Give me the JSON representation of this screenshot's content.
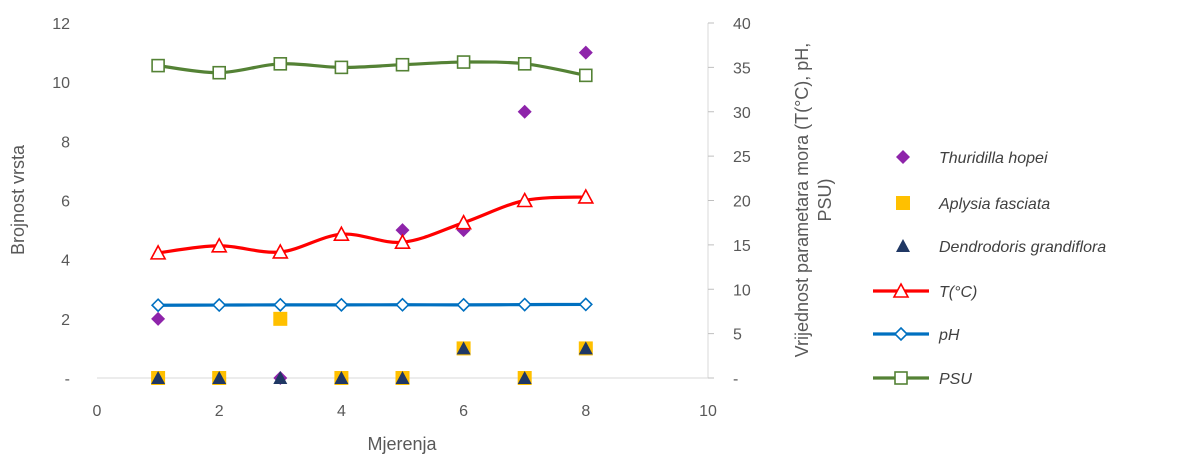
{
  "chart_data": {
    "type": "scatter",
    "xlabel": "Mjerenja",
    "ylabel": "Brojnost vrsta",
    "y2label_line1": "Vrijednost parametara mora (T(°C), pH,",
    "y2label_line2": "PSU)",
    "xlim": [
      0,
      10
    ],
    "ylim": [
      0,
      12
    ],
    "y2lim": [
      0,
      40
    ],
    "x_ticks": [
      "0",
      "2",
      "4",
      "6",
      "8",
      "10"
    ],
    "y_ticks": [
      "-",
      "2",
      "4",
      "6",
      "8",
      "10",
      "12"
    ],
    "y2_ticks": [
      "-",
      "5",
      "10",
      "15",
      "20",
      "25",
      "30",
      "35",
      "40"
    ],
    "legend_position": "right",
    "series": [
      {
        "name": "Thuridilla hopei",
        "axis": "left",
        "style": "marker",
        "marker": "diamond",
        "color": "#8E24AA",
        "x": [
          1,
          2,
          3,
          4,
          5,
          6,
          7,
          8
        ],
        "values": [
          2,
          0,
          0,
          0,
          5,
          5,
          9,
          11
        ]
      },
      {
        "name": "Aplysia fasciata",
        "axis": "left",
        "style": "marker",
        "marker": "square",
        "color": "#FFC000",
        "x": [
          1,
          2,
          3,
          4,
          5,
          6,
          7,
          8
        ],
        "values": [
          0,
          0,
          2,
          0,
          0,
          1,
          0,
          1
        ]
      },
      {
        "name": "Dendrodoris grandiflora",
        "axis": "left",
        "style": "marker",
        "marker": "triangle",
        "color": "#203864",
        "x": [
          1,
          2,
          3,
          4,
          5,
          6,
          7,
          8
        ],
        "values": [
          0,
          0,
          0,
          0,
          0,
          1,
          0,
          1
        ]
      },
      {
        "name": "T(°C)",
        "axis": "right",
        "style": "line",
        "marker": "triangle-open",
        "color": "#FF0000",
        "x": [
          1,
          2,
          3,
          4,
          5,
          6,
          7,
          8
        ],
        "values": [
          14.1,
          14.9,
          14.2,
          16.2,
          15.3,
          17.5,
          20.0,
          20.4
        ]
      },
      {
        "name": "pH",
        "axis": "right",
        "style": "line",
        "marker": "diamond-open",
        "color": "#0070C0",
        "x": [
          1,
          2,
          3,
          4,
          5,
          6,
          7,
          8
        ],
        "values": [
          8.2,
          8.22,
          8.24,
          8.24,
          8.25,
          8.24,
          8.27,
          8.29
        ]
      },
      {
        "name": "PSU",
        "axis": "right",
        "style": "line",
        "marker": "square-open",
        "color": "#548235",
        "x": [
          1,
          2,
          3,
          4,
          5,
          6,
          7,
          8
        ],
        "values": [
          35.2,
          34.4,
          35.4,
          35.0,
          35.3,
          35.6,
          35.4,
          34.1
        ]
      }
    ]
  }
}
